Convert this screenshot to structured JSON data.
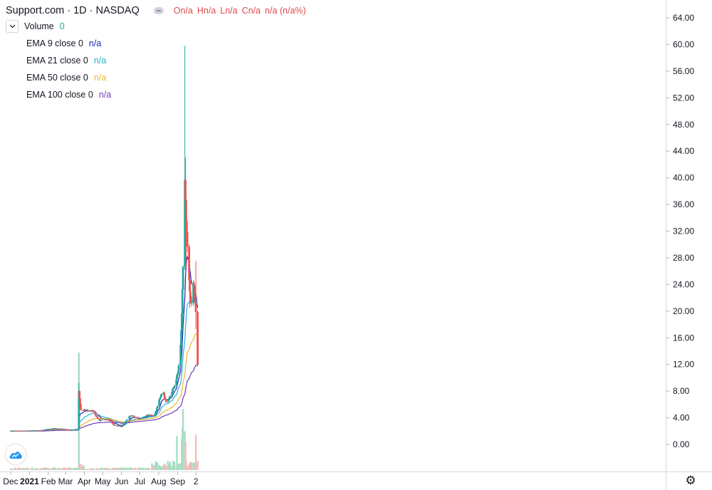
{
  "header": {
    "symbol": "Support.com · 1D · NASDAQ",
    "ohlc": [
      "On/a",
      "Hn/a",
      "Ln/a",
      "Cn/a",
      "n/a (n/a%)"
    ],
    "volume_label": "Volume",
    "volume_value": "0",
    "ema": [
      {
        "label": "EMA 9 close 0",
        "value": "n/a",
        "color": "#1e22b8"
      },
      {
        "label": "EMA 21 close 0",
        "value": "n/a",
        "color": "#2bb2cf"
      },
      {
        "label": "EMA 50 close 0",
        "value": "n/a",
        "color": "#f0b432"
      },
      {
        "label": "EMA 100 close 0",
        "value": "n/a",
        "color": "#6f3bb8"
      }
    ]
  },
  "colors": {
    "up": "#26a69a",
    "down": "#ef5350",
    "up_vol": "#a9dcc3",
    "down_vol": "#f7b9b8"
  },
  "chart_data": {
    "type": "candlestick",
    "title": "",
    "xlabel": "",
    "ylabel": "",
    "ylim": [
      -4,
      66
    ],
    "y_ticks": [
      "64.00",
      "60.00",
      "56.00",
      "52.00",
      "48.00",
      "44.00",
      "40.00",
      "36.00",
      "32.00",
      "28.00",
      "24.00",
      "20.00",
      "16.00",
      "12.00",
      "8.00",
      "4.00",
      "0.00"
    ],
    "x_ticks": [
      "Dec",
      "2021",
      "Feb",
      "Mar",
      "Apr",
      "May",
      "Jun",
      "Jul",
      "Aug",
      "Sep",
      "2"
    ],
    "price_keypoints": [
      [
        "2020-12-01",
        2.0
      ],
      [
        "2021-01-15",
        2.05
      ],
      [
        "2021-02-10",
        2.4
      ],
      [
        "2021-03-01",
        2.2
      ],
      [
        "2021-03-10",
        2.1
      ],
      [
        "2021-03-22",
        2.3
      ],
      [
        "2021-03-23",
        8.0
      ],
      [
        "2021-03-26",
        5.2
      ],
      [
        "2021-04-15",
        5.0
      ],
      [
        "2021-04-25",
        3.6
      ],
      [
        "2021-05-10",
        3.8
      ],
      [
        "2021-05-20",
        2.9
      ],
      [
        "2021-06-01",
        2.7
      ],
      [
        "2021-06-15",
        4.3
      ],
      [
        "2021-07-01",
        3.9
      ],
      [
        "2021-07-15",
        4.4
      ],
      [
        "2021-07-25",
        4.2
      ],
      [
        "2021-08-02",
        6.6
      ],
      [
        "2021-08-08",
        8.0
      ],
      [
        "2021-08-14",
        6.0
      ],
      [
        "2021-08-22",
        7.7
      ],
      [
        "2021-08-28",
        9.1
      ],
      [
        "2021-09-01",
        10.5
      ],
      [
        "2021-09-05",
        13.0
      ],
      [
        "2021-09-08",
        19.6
      ],
      [
        "2021-09-13",
        38.8
      ],
      [
        "2021-09-14",
        36.6
      ],
      [
        "2021-09-16",
        32.0
      ],
      [
        "2021-09-20",
        24.5
      ],
      [
        "2021-09-22",
        22.0
      ],
      [
        "2021-09-24",
        20.8
      ],
      [
        "2021-09-27",
        24.0
      ],
      [
        "2021-09-29",
        23.0
      ],
      [
        "2021-09-30",
        21.5
      ],
      [
        "2021-10-01",
        20.0
      ],
      [
        "2021-10-04",
        12.0
      ]
    ],
    "spikes": [
      {
        "date": "2021-03-23",
        "high": 9.2,
        "low": 5.5
      },
      {
        "date": "2021-09-13",
        "high": 59.8,
        "low": 26.2
      },
      {
        "date": "2021-09-14",
        "high": 43.0,
        "low": 28.0
      },
      {
        "date": "2021-09-15",
        "high": 37.5,
        "low": 26.5
      },
      {
        "date": "2021-09-21",
        "high": 28.0,
        "low": 20.5
      },
      {
        "date": "2021-10-01",
        "high": 27.5,
        "low": 17.3
      }
    ],
    "volume_spikes": [
      {
        "date": "2021-03-23",
        "value": 1.0
      },
      {
        "date": "2021-08-31",
        "value": 0.29
      },
      {
        "date": "2021-09-08",
        "value": 0.27
      },
      {
        "date": "2021-09-09",
        "value": 0.36
      },
      {
        "date": "2021-09-10",
        "value": 0.52
      },
      {
        "date": "2021-09-13",
        "value": 0.33
      },
      {
        "date": "2021-09-14",
        "value": 0.24
      },
      {
        "date": "2021-10-01",
        "value": 0.3
      }
    ],
    "series": [
      {
        "name": "EMA 9 close 0",
        "period": 9,
        "color": "#1e22b8"
      },
      {
        "name": "EMA 21 close 0",
        "period": 21,
        "color": "#2bb2cf"
      },
      {
        "name": "EMA 50 close 0",
        "period": 50,
        "color": "#f0b432"
      },
      {
        "name": "EMA 100 close 0",
        "period": 100,
        "color": "#6f3bb8"
      }
    ],
    "grid": false,
    "legend": "top-left"
  }
}
